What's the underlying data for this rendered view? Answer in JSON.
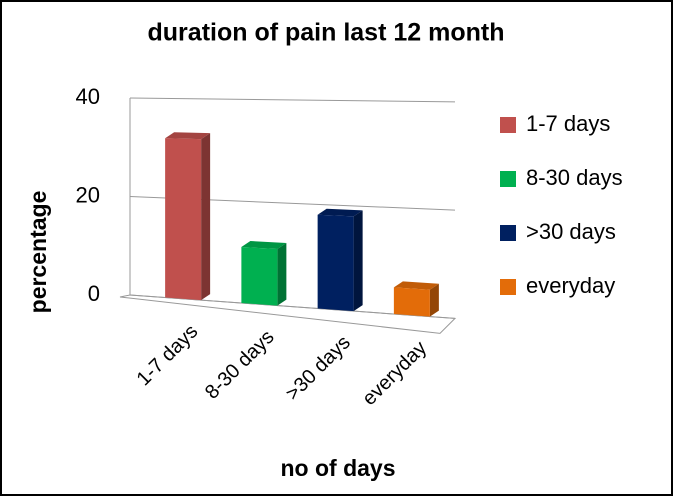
{
  "chart_data": {
    "type": "bar3d",
    "title": "duration of pain last 12 month",
    "x_label": "no of days",
    "y_label": "percentage",
    "categories": [
      "1-7 days",
      "8-30 days",
      ">30 days",
      "everyday"
    ],
    "values": [
      32,
      11,
      18,
      5
    ],
    "colors": [
      "#c0504d",
      "#00b050",
      "#002060",
      "#e36c09"
    ],
    "ylim": [
      0,
      40
    ],
    "yticks": [
      0,
      20,
      40
    ],
    "grid": true,
    "legend": "right"
  }
}
